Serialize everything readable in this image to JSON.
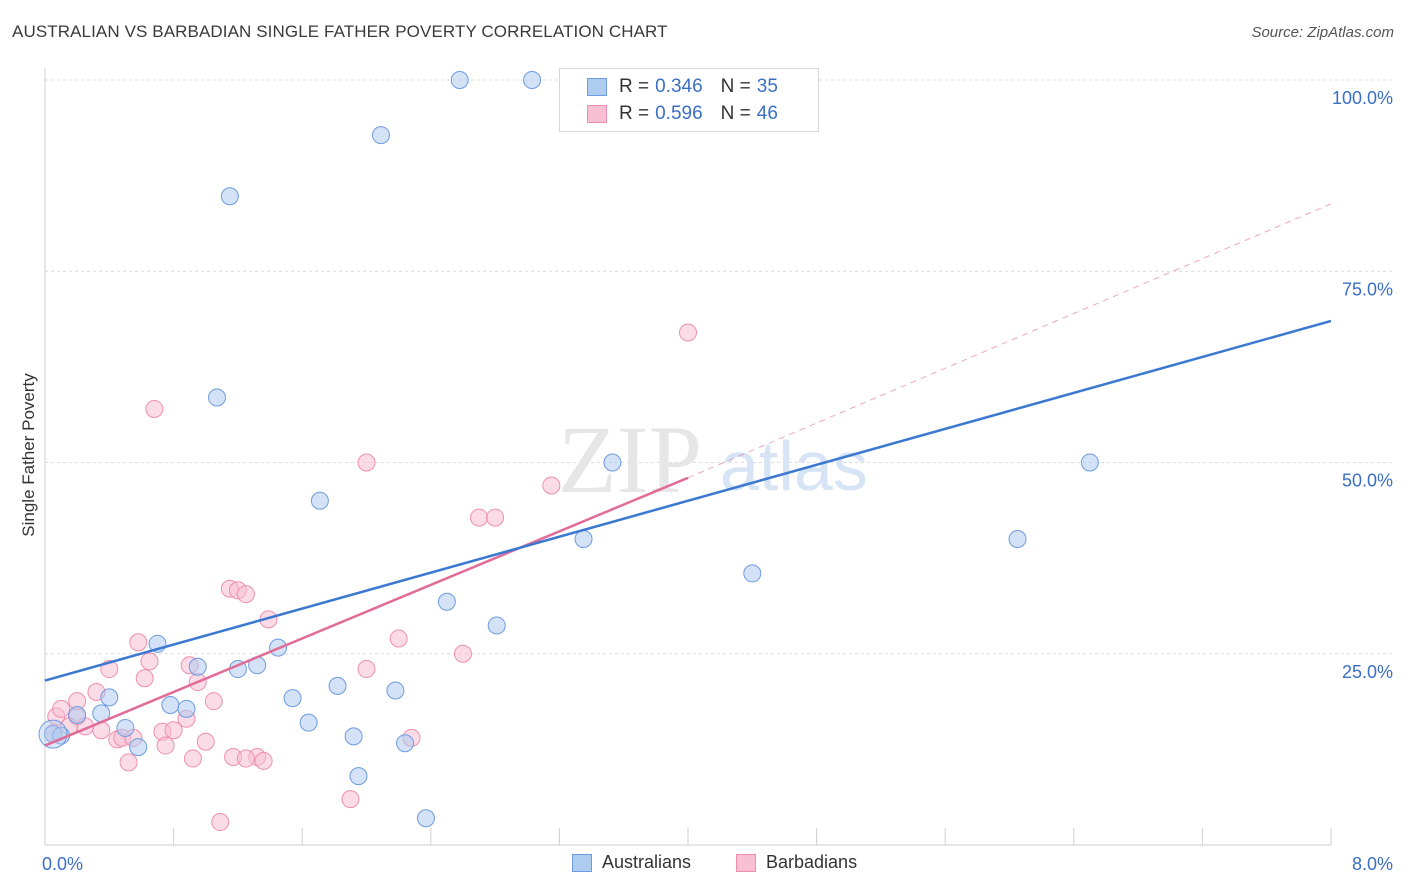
{
  "title": "AUSTRALIAN VS BARBADIAN SINGLE FATHER POVERTY CORRELATION CHART",
  "source": "Source: ZipAtlas.com",
  "watermark": {
    "zip": "ZIP",
    "atlas": "atlas"
  },
  "legend": {
    "rows": [
      {
        "r_label": "R =",
        "r_value": "0.346",
        "n_label": "N =",
        "n_value": "35"
      },
      {
        "r_label": "R =",
        "r_value": "0.596",
        "n_label": "N =",
        "n_value": "46"
      }
    ]
  },
  "colors": {
    "australians_fill": "#aecbf0",
    "australians_stroke": "#6f9be0",
    "australians_line": "#3b78d1",
    "barbadians_fill": "#f8c0d2",
    "barbadians_stroke": "#ef8fb0",
    "barbadians_line": "#e16c98",
    "grid": "#dcdcdc",
    "tick_label": "#3a6fc4"
  },
  "chart_data": {
    "type": "scatter",
    "title": "AUSTRALIAN VS BARBADIAN SINGLE FATHER POVERTY CORRELATION CHART",
    "xlabel": "",
    "ylabel": "Single Father Poverty",
    "xlim": [
      0,
      8
    ],
    "ylim": [
      0,
      100
    ],
    "x_tick_labels": [
      "0.0%",
      "8.0%"
    ],
    "y_tick_labels": [
      "25.0%",
      "50.0%",
      "75.0%",
      "100.0%"
    ],
    "y_ticks": [
      25,
      50,
      75,
      100
    ],
    "grid": true,
    "legend_position": "top-center",
    "series": [
      {
        "name": "Australians",
        "legend_label": "Australians",
        "r": 0.346,
        "n": 35,
        "points": [
          [
            0.05,
            14.5
          ],
          [
            0.1,
            14.3
          ],
          [
            0.2,
            17.0
          ],
          [
            0.35,
            17.2
          ],
          [
            0.4,
            19.3
          ],
          [
            0.5,
            15.3
          ],
          [
            0.58,
            12.8
          ],
          [
            0.7,
            26.3
          ],
          [
            0.78,
            18.3
          ],
          [
            0.88,
            17.8
          ],
          [
            0.95,
            23.3
          ],
          [
            1.07,
            58.5
          ],
          [
            1.15,
            84.8
          ],
          [
            1.2,
            23.0
          ],
          [
            1.32,
            23.5
          ],
          [
            1.45,
            25.8
          ],
          [
            1.54,
            19.2
          ],
          [
            1.64,
            16.0
          ],
          [
            1.71,
            45.0
          ],
          [
            1.82,
            20.8
          ],
          [
            1.92,
            14.2
          ],
          [
            1.95,
            9.0
          ],
          [
            2.09,
            92.8
          ],
          [
            2.18,
            20.2
          ],
          [
            2.24,
            13.3
          ],
          [
            2.37,
            3.5
          ],
          [
            2.5,
            31.8
          ],
          [
            2.58,
            100.0
          ],
          [
            2.81,
            28.7
          ],
          [
            3.03,
            100.0
          ],
          [
            3.35,
            40.0
          ],
          [
            3.53,
            50.0
          ],
          [
            4.4,
            35.5
          ],
          [
            6.05,
            40.0
          ],
          [
            6.5,
            50.0
          ]
        ],
        "trend": {
          "x": [
            0.0,
            8.0
          ],
          "y": [
            21.5,
            68.5
          ]
        }
      },
      {
        "name": "Barbadians",
        "legend_label": "Barbadians",
        "r": 0.596,
        "n": 46,
        "points": [
          [
            0.05,
            14.6
          ],
          [
            0.07,
            16.8
          ],
          [
            0.1,
            17.8
          ],
          [
            0.2,
            16.8
          ],
          [
            0.2,
            18.8
          ],
          [
            0.25,
            15.5
          ],
          [
            0.32,
            20.0
          ],
          [
            0.35,
            15.0
          ],
          [
            0.4,
            23.0
          ],
          [
            0.45,
            13.8
          ],
          [
            0.48,
            14.0
          ],
          [
            0.52,
            10.8
          ],
          [
            0.58,
            26.5
          ],
          [
            0.62,
            21.8
          ],
          [
            0.65,
            24.0
          ],
          [
            0.68,
            57.0
          ],
          [
            0.73,
            14.8
          ],
          [
            0.75,
            13.0
          ],
          [
            0.8,
            15.0
          ],
          [
            0.88,
            16.5
          ],
          [
            0.9,
            23.5
          ],
          [
            0.92,
            11.3
          ],
          [
            0.95,
            21.3
          ],
          [
            1.0,
            13.5
          ],
          [
            1.05,
            18.8
          ],
          [
            1.09,
            3.0
          ],
          [
            1.15,
            33.5
          ],
          [
            1.17,
            11.5
          ],
          [
            1.2,
            33.3
          ],
          [
            1.25,
            32.8
          ],
          [
            1.32,
            11.5
          ],
          [
            1.36,
            11.0
          ],
          [
            1.39,
            29.5
          ],
          [
            1.9,
            6.0
          ],
          [
            2.0,
            23.0
          ],
          [
            2.0,
            50.0
          ],
          [
            2.2,
            27.0
          ],
          [
            2.28,
            14.0
          ],
          [
            2.6,
            25.0
          ],
          [
            2.7,
            42.8
          ],
          [
            2.8,
            42.8
          ],
          [
            3.15,
            47.0
          ],
          [
            4.0,
            67.0
          ],
          [
            0.15,
            15.5
          ],
          [
            0.55,
            14.0
          ],
          [
            1.25,
            11.3
          ]
        ],
        "trend": {
          "x": [
            0.0,
            4.0
          ],
          "y": [
            13.0,
            48.0
          ]
        },
        "trend_extension": {
          "x": [
            4.0,
            8.0
          ],
          "y": [
            48.0,
            83.8
          ]
        }
      }
    ]
  },
  "bottom_legend": {
    "items": [
      {
        "label": "Australians"
      },
      {
        "label": "Barbadians"
      }
    ]
  }
}
